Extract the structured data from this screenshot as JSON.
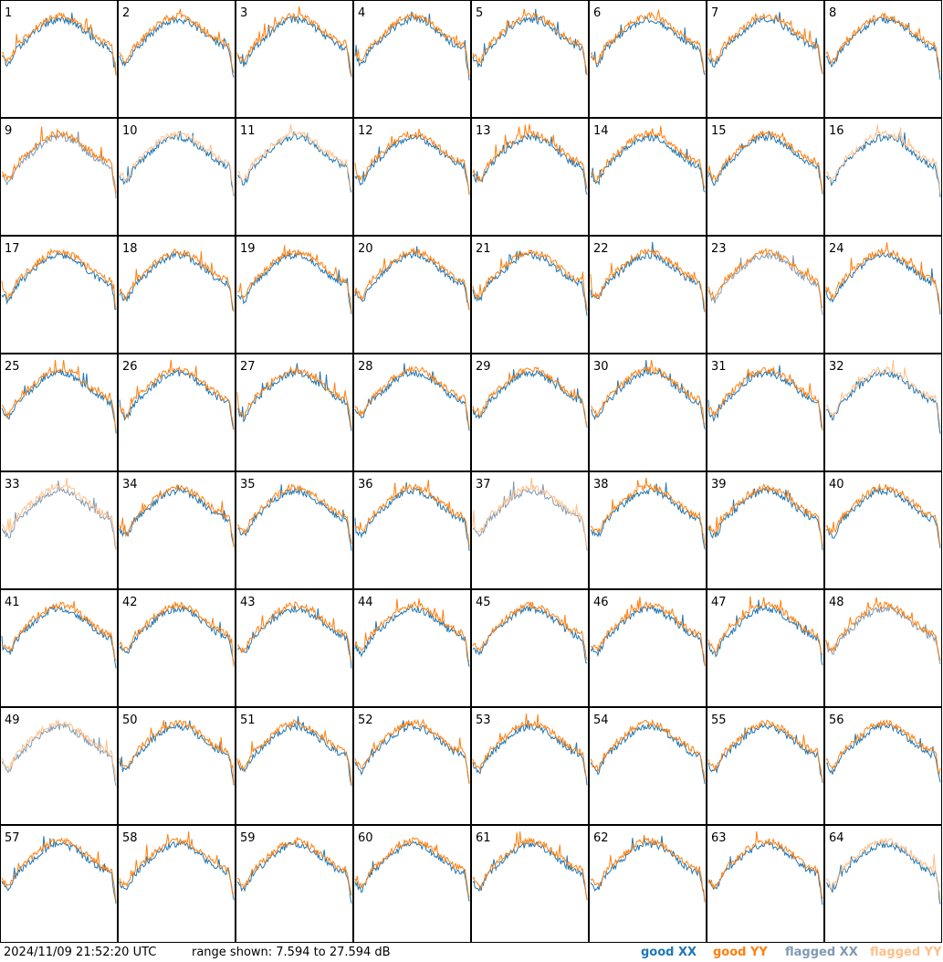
{
  "chart_data": {
    "type": "line",
    "layout": "8x8 small multiples of per-antenna spectra",
    "range_db": [
      7.594,
      27.594
    ],
    "panels": [
      {
        "id": "1",
        "xx": "good",
        "yy": "good"
      },
      {
        "id": "2",
        "xx": "good",
        "yy": "good"
      },
      {
        "id": "3",
        "xx": "good",
        "yy": "good"
      },
      {
        "id": "4",
        "xx": "good",
        "yy": "good"
      },
      {
        "id": "5",
        "xx": "good",
        "yy": "good"
      },
      {
        "id": "6",
        "xx": "good",
        "yy": "good"
      },
      {
        "id": "7",
        "xx": "good",
        "yy": "good"
      },
      {
        "id": "8",
        "xx": "good",
        "yy": "good"
      },
      {
        "id": "9",
        "xx": "flagged",
        "yy": "good"
      },
      {
        "id": "10",
        "xx": "good",
        "yy": "flagged"
      },
      {
        "id": "11",
        "xx": "good",
        "yy": "flagged"
      },
      {
        "id": "12",
        "xx": "good",
        "yy": "good"
      },
      {
        "id": "13",
        "xx": "good",
        "yy": "good"
      },
      {
        "id": "14",
        "xx": "good",
        "yy": "good"
      },
      {
        "id": "15",
        "xx": "good",
        "yy": "good"
      },
      {
        "id": "16",
        "xx": "good",
        "yy": "flagged"
      },
      {
        "id": "17",
        "xx": "good",
        "yy": "good"
      },
      {
        "id": "18",
        "xx": "good",
        "yy": "good"
      },
      {
        "id": "19",
        "xx": "good",
        "yy": "good"
      },
      {
        "id": "20",
        "xx": "good",
        "yy": "good"
      },
      {
        "id": "21",
        "xx": "good",
        "yy": "good"
      },
      {
        "id": "22",
        "xx": "good",
        "yy": "good"
      },
      {
        "id": "23",
        "xx": "flagged",
        "yy": "good"
      },
      {
        "id": "24",
        "xx": "good",
        "yy": "good"
      },
      {
        "id": "25",
        "xx": "good",
        "yy": "good"
      },
      {
        "id": "26",
        "xx": "good",
        "yy": "good"
      },
      {
        "id": "27",
        "xx": "good",
        "yy": "good"
      },
      {
        "id": "28",
        "xx": "good",
        "yy": "good"
      },
      {
        "id": "29",
        "xx": "good",
        "yy": "good"
      },
      {
        "id": "30",
        "xx": "good",
        "yy": "good"
      },
      {
        "id": "31",
        "xx": "good",
        "yy": "good"
      },
      {
        "id": "32",
        "xx": "good",
        "yy": "flagged"
      },
      {
        "id": "33",
        "xx": "flagged",
        "yy": "flagged"
      },
      {
        "id": "34",
        "xx": "good",
        "yy": "good"
      },
      {
        "id": "35",
        "xx": "good",
        "yy": "good"
      },
      {
        "id": "36",
        "xx": "good",
        "yy": "good"
      },
      {
        "id": "37",
        "xx": "flagged",
        "yy": "flagged"
      },
      {
        "id": "38",
        "xx": "good",
        "yy": "good"
      },
      {
        "id": "39",
        "xx": "good",
        "yy": "good"
      },
      {
        "id": "40",
        "xx": "good",
        "yy": "good"
      },
      {
        "id": "41",
        "xx": "good",
        "yy": "good"
      },
      {
        "id": "42",
        "xx": "good",
        "yy": "good"
      },
      {
        "id": "43",
        "xx": "good",
        "yy": "good"
      },
      {
        "id": "44",
        "xx": "good",
        "yy": "good"
      },
      {
        "id": "45",
        "xx": "good",
        "yy": "good"
      },
      {
        "id": "46",
        "xx": "good",
        "yy": "good"
      },
      {
        "id": "47",
        "xx": "good",
        "yy": "good"
      },
      {
        "id": "48",
        "xx": "flagged",
        "yy": "good"
      },
      {
        "id": "49",
        "xx": "flagged",
        "yy": "flagged"
      },
      {
        "id": "50",
        "xx": "good",
        "yy": "good"
      },
      {
        "id": "51",
        "xx": "good",
        "yy": "good"
      },
      {
        "id": "52",
        "xx": "good",
        "yy": "good"
      },
      {
        "id": "53",
        "xx": "good",
        "yy": "good"
      },
      {
        "id": "54",
        "xx": "good",
        "yy": "good"
      },
      {
        "id": "55",
        "xx": "good",
        "yy": "good"
      },
      {
        "id": "56",
        "xx": "good",
        "yy": "good"
      },
      {
        "id": "57",
        "xx": "good",
        "yy": "good"
      },
      {
        "id": "58",
        "xx": "good",
        "yy": "good"
      },
      {
        "id": "59",
        "xx": "good",
        "yy": "good"
      },
      {
        "id": "60",
        "xx": "good",
        "yy": "good"
      },
      {
        "id": "61",
        "xx": "good",
        "yy": "good"
      },
      {
        "id": "62",
        "xx": "good",
        "yy": "good"
      },
      {
        "id": "63",
        "xx": "good",
        "yy": "good"
      },
      {
        "id": "64",
        "xx": "good",
        "yy": "flagged"
      }
    ],
    "legend": [
      {
        "label": "good XX",
        "color": "#1f77b4"
      },
      {
        "label": "good YY",
        "color": "#ff7f0e"
      },
      {
        "label": "flagged XX",
        "color": "#7f9ab3"
      },
      {
        "label": "flagged YY",
        "color": "#ffbf8a"
      }
    ]
  },
  "footer": {
    "timestamp": "2024/11/09 21:52:20 UTC",
    "range_text": "range shown: 7.594 to 27.594 dB"
  }
}
